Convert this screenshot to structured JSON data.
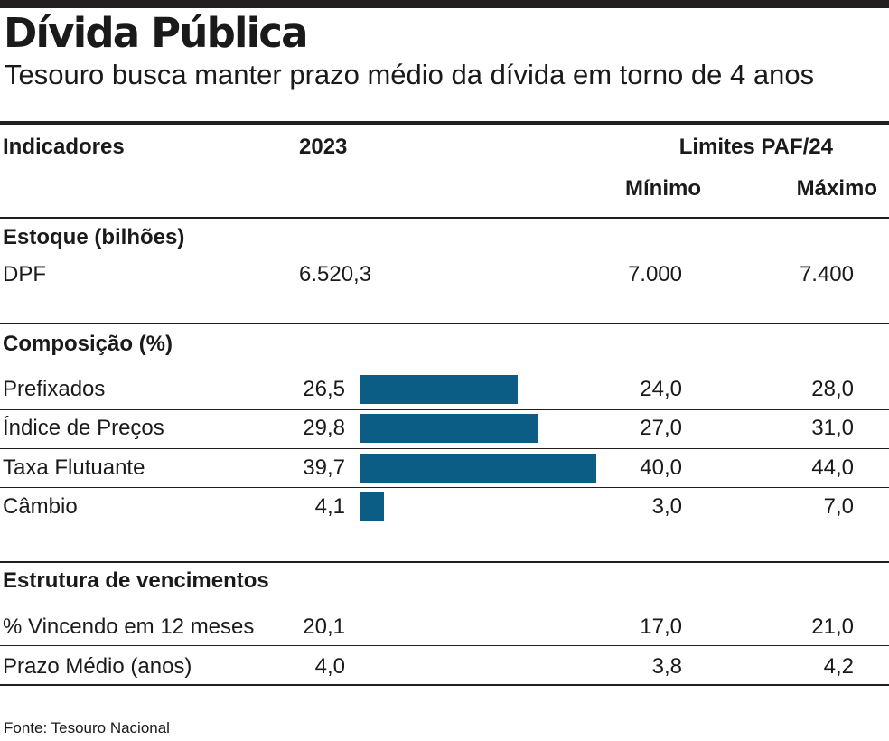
{
  "title": "Dívida Pública",
  "subtitle": "Tesouro busca manter prazo médio da dívida em torno de 4 anos",
  "header": {
    "indicadores": "Indicadores",
    "year": "2023",
    "limits": "Limites PAF/24",
    "min": "Mínimo",
    "max": "Máximo"
  },
  "sections": {
    "estoque": "Estoque (bilhões)",
    "composicao": "Composição (%)",
    "estrutura": "Estrutura de vencimentos"
  },
  "rows": {
    "dpf": {
      "label": "DPF",
      "value": "6.520,3",
      "min": "7.000",
      "max": "7.400"
    },
    "prefixados": {
      "label": "Prefixados",
      "value": "26,5",
      "min": "24,0",
      "max": "28,0"
    },
    "indice": {
      "label": "Índice de Preços",
      "value": "29,8",
      "min": "27,0",
      "max": "31,0"
    },
    "taxa": {
      "label": "Taxa Flutuante",
      "value": "39,7",
      "min": "40,0",
      "max": "44,0"
    },
    "cambio": {
      "label": "Câmbio",
      "value": "4,1",
      "min": "3,0",
      "max": "7,0"
    },
    "vincendo": {
      "label": "% Vincendo em 12 meses",
      "value": "20,1",
      "min": "17,0",
      "max": "21,0"
    },
    "prazo": {
      "label": "Prazo Médio (anos)",
      "value": "4,0",
      "min": "3,8",
      "max": "4,2"
    }
  },
  "source": "Fonte: Tesouro Nacional",
  "colors": {
    "bar": "#0b5d86",
    "rule": "#231f20",
    "text": "#1a1a1a"
  },
  "chart_data": {
    "type": "bar",
    "orientation": "horizontal",
    "categories": [
      "Prefixados",
      "Índice de Preços",
      "Taxa Flutuante",
      "Câmbio"
    ],
    "values": [
      26.5,
      29.8,
      39.7,
      4.1
    ],
    "title": "Composição (%)",
    "xlim": [
      0,
      40
    ],
    "grid": false,
    "legend": "none"
  }
}
